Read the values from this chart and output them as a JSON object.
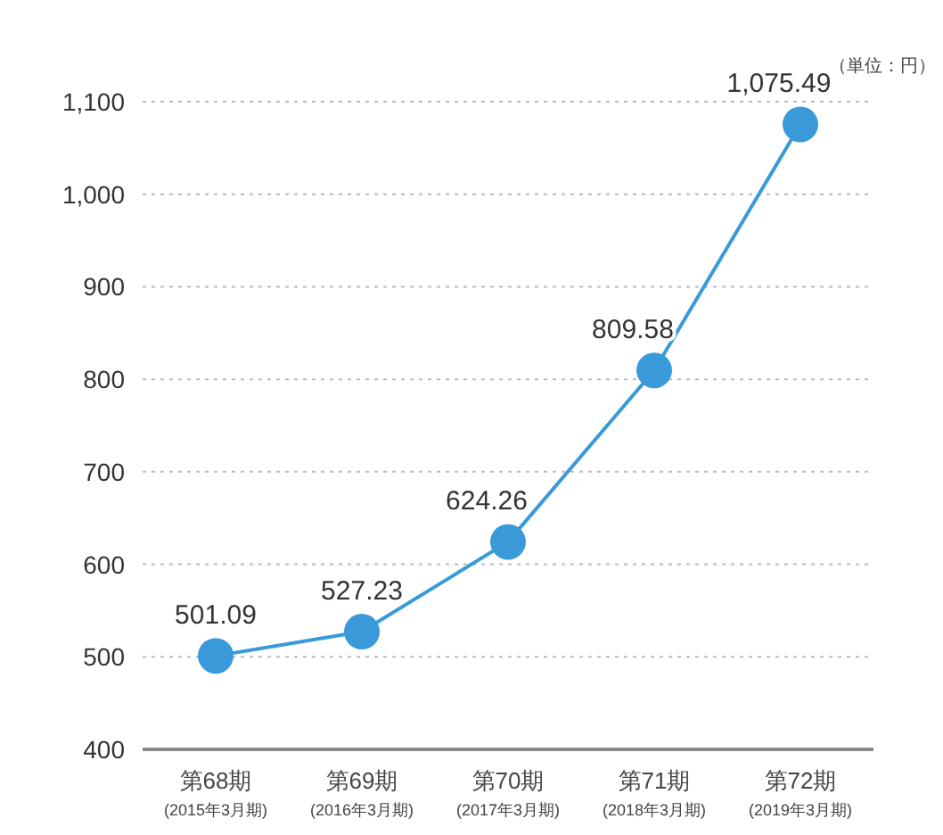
{
  "chart_data": {
    "type": "line",
    "categories": [
      "第68期\n(2015年3月期)",
      "第69期\n(2016年3月期)",
      "第70期\n(2017年3月期)",
      "第71期\n(2018年3月期)",
      "第72期\n(2019年3月期)"
    ],
    "series": [
      {
        "color": "#3a9ad9",
        "values": [
          501.09,
          527.23,
          624.26,
          809.58,
          1075.49
        ],
        "value_labels": [
          "501.09",
          "527.23",
          "624.26",
          "809.58",
          "1,075.49"
        ]
      }
    ],
    "ylim": [
      400,
      1100
    ],
    "yticks": [
      {
        "value": 400,
        "label": "400"
      },
      {
        "value": 500,
        "label": "500"
      },
      {
        "value": 600,
        "label": "600"
      },
      {
        "value": 700,
        "label": "700"
      },
      {
        "value": 800,
        "label": "800"
      },
      {
        "value": 900,
        "label": "900"
      },
      {
        "value": 1000,
        "label": "1,000"
      },
      {
        "value": 1100,
        "label": "1,100"
      }
    ],
    "grid": "y",
    "marker": "circle",
    "line_style": "solid",
    "annotations": [
      "（単位：円）"
    ]
  }
}
